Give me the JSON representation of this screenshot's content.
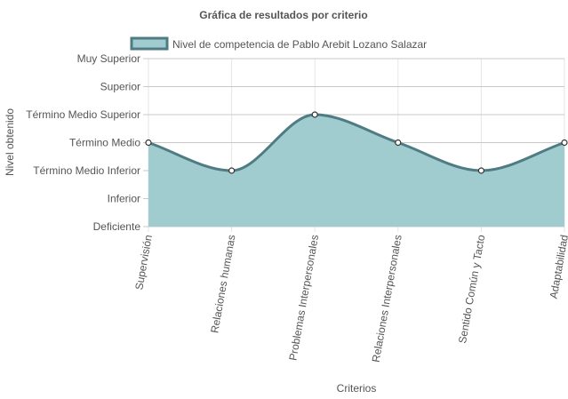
{
  "chart_data": {
    "type": "area",
    "title": "Gráfica de resultados por criterio",
    "xlabel": "Criterios",
    "ylabel": "Nivel obtenido",
    "categories": [
      "Supervisión",
      "Relaciones humanas",
      "Problemas Interpersonales",
      "Relaciones Interpersonales",
      "Sentido Común y Tacto",
      "Adaptabilidad"
    ],
    "y_levels": [
      "Deficiente",
      "Inferior",
      "Término Medio Inferior",
      "Término Medio",
      "Término Medio Superior",
      "Superior",
      "Muy Superior"
    ],
    "series": [
      {
        "name": "Nivel de competencia de Pablo Arebit Lozano Salazar",
        "values": [
          3,
          2,
          4,
          3,
          2,
          3
        ]
      }
    ],
    "ylim": [
      0,
      6
    ],
    "grid": true,
    "legend_position": "top",
    "colors": {
      "fill": "#a0cbcf",
      "stroke": "#4f7c83",
      "point_fill": "#ffffff",
      "point_stroke": "#333333"
    }
  }
}
